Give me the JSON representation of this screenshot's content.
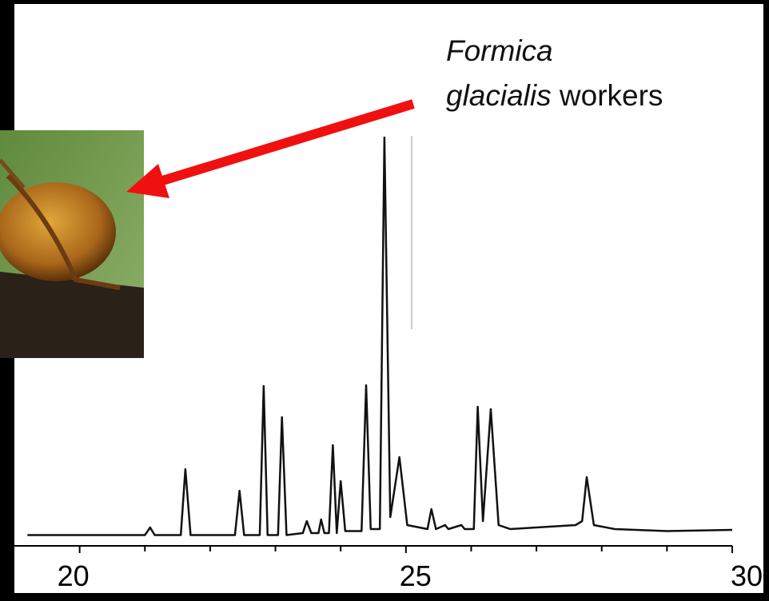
{
  "chart_data": {
    "type": "line",
    "x": [
      19.2,
      21.0,
      21.08,
      21.15,
      21.55,
      21.62,
      21.7,
      22.38,
      22.45,
      22.52,
      22.76,
      22.82,
      22.88,
      23.04,
      23.1,
      23.17,
      23.42,
      23.48,
      23.55,
      23.66,
      23.7,
      23.75,
      23.82,
      23.88,
      23.94,
      24.0,
      24.07,
      24.32,
      24.39,
      24.46,
      24.6,
      24.67,
      24.76,
      24.9,
      25.02,
      25.33,
      25.39,
      25.46,
      25.6,
      25.65,
      25.85,
      25.9,
      26.04,
      26.1,
      26.18,
      26.3,
      26.42,
      26.6,
      27.6,
      27.7,
      27.77,
      27.88,
      28.2,
      29.0,
      30.0
    ],
    "series": [
      {
        "color": "#111111",
        "values": [
          0.5,
          0.5,
          2.4,
          0.5,
          0.5,
          17,
          0.5,
          0.5,
          11.6,
          0.5,
          0.5,
          37.8,
          0.5,
          0.5,
          30,
          0.5,
          1,
          4,
          1,
          1,
          4.4,
          1,
          1,
          23,
          1,
          14,
          1.5,
          1.5,
          38,
          2,
          2,
          100,
          5,
          20,
          3,
          2,
          7,
          2,
          3,
          2,
          3,
          2,
          2,
          32.6,
          4,
          32,
          3,
          2,
          3,
          4,
          15,
          3,
          2,
          1.5,
          1.8
        ]
      }
    ],
    "xlim": [
      19,
      30
    ],
    "ylim": [
      -2,
      100
    ],
    "xticks": [
      20,
      25,
      30
    ],
    "minor_xticks": [
      21,
      22,
      23,
      24,
      26,
      27,
      28,
      29
    ],
    "annotation": {
      "genus": "Formica",
      "species": "glacialis",
      "caste": "workers"
    }
  }
}
